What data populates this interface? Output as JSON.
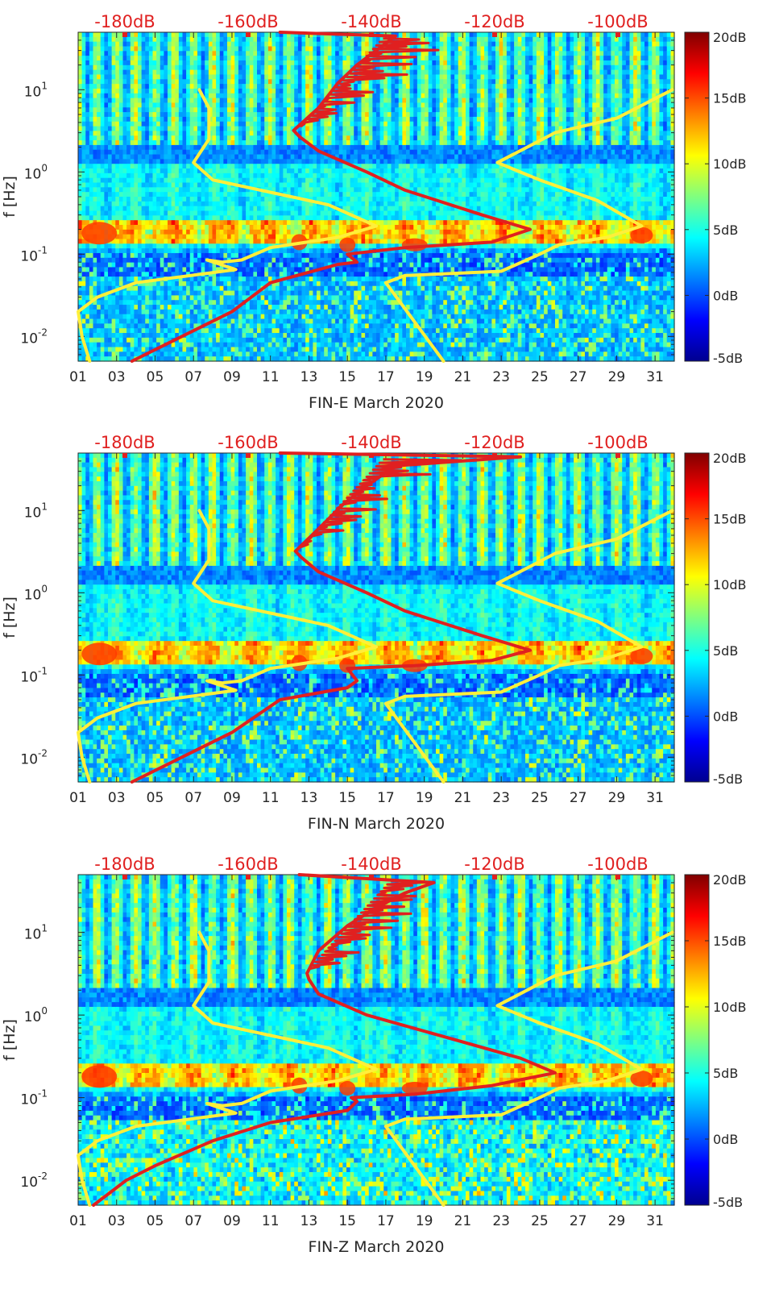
{
  "chart_data": [
    {
      "type": "heatmap",
      "xlabel": "FIN-E March 2020",
      "ylabel": "f [Hz]",
      "x_ticks": [
        "01",
        "03",
        "05",
        "07",
        "09",
        "11",
        "13",
        "15",
        "17",
        "19",
        "21",
        "23",
        "25",
        "27",
        "29",
        "31"
      ],
      "x_range_days": [
        1,
        32
      ],
      "y_scale": "log",
      "y_range_hz": [
        0.005,
        50
      ],
      "y_ticks": [
        {
          "value": 0.01,
          "base": "10",
          "exp": "-2"
        },
        {
          "value": 0.1,
          "base": "10",
          "exp": "-1"
        },
        {
          "value": 1,
          "base": "10",
          "exp": "0"
        },
        {
          "value": 10,
          "base": "10",
          "exp": "1"
        }
      ],
      "top_axis_labels": [
        "-180dB",
        "-160dB",
        "-140dB",
        "-120dB",
        "-100dB"
      ],
      "colorbar": {
        "labels": [
          "20dB",
          "15dB",
          "10dB",
          "5dB",
          "0dB",
          "-5dB"
        ],
        "range_db": [
          -5,
          20
        ]
      },
      "series": [
        {
          "color": "#ffef3a",
          "segments": [
            [
              [
                7.3,
                10
              ],
              [
                7.8,
                6
              ],
              [
                7.8,
                2.5
              ],
              [
                7.0,
                1.3
              ],
              [
                8.0,
                0.8
              ],
              [
                14.0,
                0.4
              ],
              [
                16.5,
                0.22
              ],
              [
                14.5,
                0.16
              ],
              [
                11.0,
                0.12
              ],
              [
                9.5,
                0.085
              ],
              [
                8.5,
                0.08
              ],
              [
                7.7,
                0.085
              ],
              [
                9.2,
                0.065
              ],
              [
                4.0,
                0.045
              ],
              [
                2.0,
                0.03
              ],
              [
                1.0,
                0.02
              ],
              [
                1.2,
                0.01
              ],
              [
                1.6,
                0.005
              ]
            ],
            [
              [
                17.0,
                0.045
              ],
              [
                18.0,
                0.055
              ],
              [
                23.0,
                0.062
              ],
              [
                25.0,
                0.1
              ],
              [
                26.0,
                0.13
              ],
              [
                28.5,
                0.16
              ],
              [
                30.3,
                0.22
              ],
              [
                28.0,
                0.45
              ],
              [
                25.0,
                0.8
              ],
              [
                22.8,
                1.3
              ],
              [
                25.8,
                3
              ],
              [
                29.0,
                4.5
              ],
              [
                31.9,
                10
              ]
            ],
            [
              [
                17.0,
                0.045
              ],
              [
                20.0,
                0.005
              ]
            ]
          ]
        },
        {
          "color": "#e02020",
          "segments": [
            [
              [
                3.8,
                0.005
              ],
              [
                9.0,
                0.02
              ],
              [
                11.0,
                0.045
              ],
              [
                14.5,
                0.075
              ],
              [
                15.5,
                0.08
              ],
              [
                15.0,
                0.1
              ],
              [
                18.0,
                0.12
              ],
              [
                22.5,
                0.14
              ],
              [
                24.5,
                0.2
              ],
              [
                22.0,
                0.3
              ],
              [
                18.0,
                0.6
              ],
              [
                16.0,
                1.0
              ],
              [
                13.5,
                1.8
              ],
              [
                12.5,
                2.7
              ],
              [
                12.2,
                3.2
              ],
              [
                13.5,
                6
              ],
              [
                14.5,
                12
              ],
              [
                15.5,
                20
              ],
              [
                16.5,
                30
              ],
              [
                17.5,
                45
              ],
              [
                11.5,
                50
              ]
            ]
          ]
        }
      ]
    },
    {
      "type": "heatmap",
      "xlabel": "FIN-N March 2020",
      "ylabel": "f [Hz]",
      "x_ticks": [
        "01",
        "03",
        "05",
        "07",
        "09",
        "11",
        "13",
        "15",
        "17",
        "19",
        "21",
        "23",
        "25",
        "27",
        "29",
        "31"
      ],
      "x_range_days": [
        1,
        32
      ],
      "y_scale": "log",
      "y_range_hz": [
        0.005,
        50
      ],
      "y_ticks": [
        {
          "value": 0.01,
          "base": "10",
          "exp": "-2"
        },
        {
          "value": 0.1,
          "base": "10",
          "exp": "-1"
        },
        {
          "value": 1,
          "base": "10",
          "exp": "0"
        },
        {
          "value": 10,
          "base": "10",
          "exp": "1"
        }
      ],
      "top_axis_labels": [
        "-180dB",
        "-160dB",
        "-140dB",
        "-120dB",
        "-100dB"
      ],
      "colorbar": {
        "labels": [
          "20dB",
          "15dB",
          "10dB",
          "5dB",
          "0dB",
          "-5dB"
        ],
        "range_db": [
          -5,
          20
        ]
      },
      "series": [
        {
          "color": "#ffef3a",
          "segments": [
            [
              [
                7.3,
                10
              ],
              [
                7.8,
                6
              ],
              [
                7.8,
                2.5
              ],
              [
                7.0,
                1.3
              ],
              [
                8.0,
                0.8
              ],
              [
                14.0,
                0.4
              ],
              [
                16.5,
                0.22
              ],
              [
                14.5,
                0.16
              ],
              [
                11.0,
                0.12
              ],
              [
                9.5,
                0.085
              ],
              [
                8.5,
                0.08
              ],
              [
                7.7,
                0.085
              ],
              [
                9.2,
                0.065
              ],
              [
                4.0,
                0.045
              ],
              [
                2.0,
                0.03
              ],
              [
                1.0,
                0.02
              ],
              [
                1.2,
                0.01
              ],
              [
                1.6,
                0.005
              ]
            ],
            [
              [
                17.0,
                0.045
              ],
              [
                18.0,
                0.055
              ],
              [
                23.0,
                0.062
              ],
              [
                25.0,
                0.1
              ],
              [
                26.0,
                0.13
              ],
              [
                28.5,
                0.16
              ],
              [
                30.3,
                0.22
              ],
              [
                28.0,
                0.45
              ],
              [
                25.0,
                0.8
              ],
              [
                22.8,
                1.3
              ],
              [
                25.8,
                3
              ],
              [
                29.0,
                4.5
              ],
              [
                31.9,
                10
              ]
            ],
            [
              [
                17.0,
                0.045
              ],
              [
                20.0,
                0.005
              ]
            ]
          ]
        },
        {
          "color": "#e02020",
          "segments": [
            [
              [
                3.8,
                0.005
              ],
              [
                9.0,
                0.02
              ],
              [
                11.5,
                0.05
              ],
              [
                15.0,
                0.07
              ],
              [
                15.5,
                0.085
              ],
              [
                15.0,
                0.12
              ],
              [
                18.5,
                0.13
              ],
              [
                22.5,
                0.15
              ],
              [
                24.5,
                0.2
              ],
              [
                22.0,
                0.3
              ],
              [
                18.0,
                0.6
              ],
              [
                16.0,
                1.0
              ],
              [
                13.5,
                1.8
              ],
              [
                12.6,
                2.7
              ],
              [
                12.3,
                3.2
              ],
              [
                13.5,
                6
              ],
              [
                14.8,
                12
              ],
              [
                16.0,
                20
              ],
              [
                17.5,
                35
              ],
              [
                24.0,
                45
              ],
              [
                11.5,
                50
              ]
            ]
          ]
        }
      ]
    },
    {
      "type": "heatmap",
      "xlabel": "FIN-Z March 2020",
      "ylabel": "f [Hz]",
      "x_ticks": [
        "01",
        "03",
        "05",
        "07",
        "09",
        "11",
        "13",
        "15",
        "17",
        "19",
        "21",
        "23",
        "25",
        "27",
        "29",
        "31"
      ],
      "x_range_days": [
        1,
        32
      ],
      "y_scale": "log",
      "y_range_hz": [
        0.005,
        50
      ],
      "y_ticks": [
        {
          "value": 0.01,
          "base": "10",
          "exp": "-2"
        },
        {
          "value": 0.1,
          "base": "10",
          "exp": "-1"
        },
        {
          "value": 1,
          "base": "10",
          "exp": "0"
        },
        {
          "value": 10,
          "base": "10",
          "exp": "1"
        }
      ],
      "top_axis_labels": [
        "-180dB",
        "-160dB",
        "-140dB",
        "-120dB",
        "-100dB"
      ],
      "colorbar": {
        "labels": [
          "20dB",
          "15dB",
          "10dB",
          "5dB",
          "0dB",
          "-5dB"
        ],
        "range_db": [
          -5,
          20
        ]
      },
      "series": [
        {
          "color": "#ffef3a",
          "segments": [
            [
              [
                7.3,
                10
              ],
              [
                7.8,
                6
              ],
              [
                7.8,
                2.5
              ],
              [
                7.0,
                1.3
              ],
              [
                8.0,
                0.8
              ],
              [
                14.0,
                0.4
              ],
              [
                16.5,
                0.22
              ],
              [
                14.5,
                0.16
              ],
              [
                11.0,
                0.12
              ],
              [
                9.5,
                0.085
              ],
              [
                8.5,
                0.08
              ],
              [
                7.7,
                0.085
              ],
              [
                9.2,
                0.065
              ],
              [
                4.0,
                0.045
              ],
              [
                2.0,
                0.03
              ],
              [
                1.0,
                0.02
              ],
              [
                1.2,
                0.01
              ],
              [
                1.6,
                0.005
              ]
            ],
            [
              [
                17.0,
                0.045
              ],
              [
                18.0,
                0.055
              ],
              [
                23.0,
                0.062
              ],
              [
                25.0,
                0.1
              ],
              [
                26.0,
                0.13
              ],
              [
                28.5,
                0.16
              ],
              [
                30.3,
                0.22
              ],
              [
                28.0,
                0.45
              ],
              [
                25.0,
                0.8
              ],
              [
                22.8,
                1.3
              ],
              [
                25.8,
                3
              ],
              [
                29.0,
                4.5
              ],
              [
                31.9,
                10
              ]
            ],
            [
              [
                17.0,
                0.045
              ],
              [
                20.0,
                0.005
              ]
            ]
          ]
        },
        {
          "color": "#e02020",
          "segments": [
            [
              [
                1.8,
                0.005
              ],
              [
                3.5,
                0.01
              ],
              [
                5.0,
                0.015
              ],
              [
                8.0,
                0.03
              ],
              [
                11.0,
                0.05
              ],
              [
                15.0,
                0.07
              ],
              [
                15.5,
                0.09
              ],
              [
                15.2,
                0.1
              ],
              [
                18.5,
                0.11
              ],
              [
                22.5,
                0.14
              ],
              [
                25.8,
                0.2
              ],
              [
                24.0,
                0.3
              ],
              [
                20.0,
                0.55
              ],
              [
                16.0,
                1.0
              ],
              [
                13.5,
                1.8
              ],
              [
                13.0,
                2.7
              ],
              [
                12.9,
                3.2
              ],
              [
                13.5,
                6
              ],
              [
                15.0,
                12
              ],
              [
                16.5,
                20
              ],
              [
                18.0,
                30
              ],
              [
                19.5,
                40
              ],
              [
                12.5,
                50
              ]
            ]
          ]
        }
      ]
    }
  ]
}
